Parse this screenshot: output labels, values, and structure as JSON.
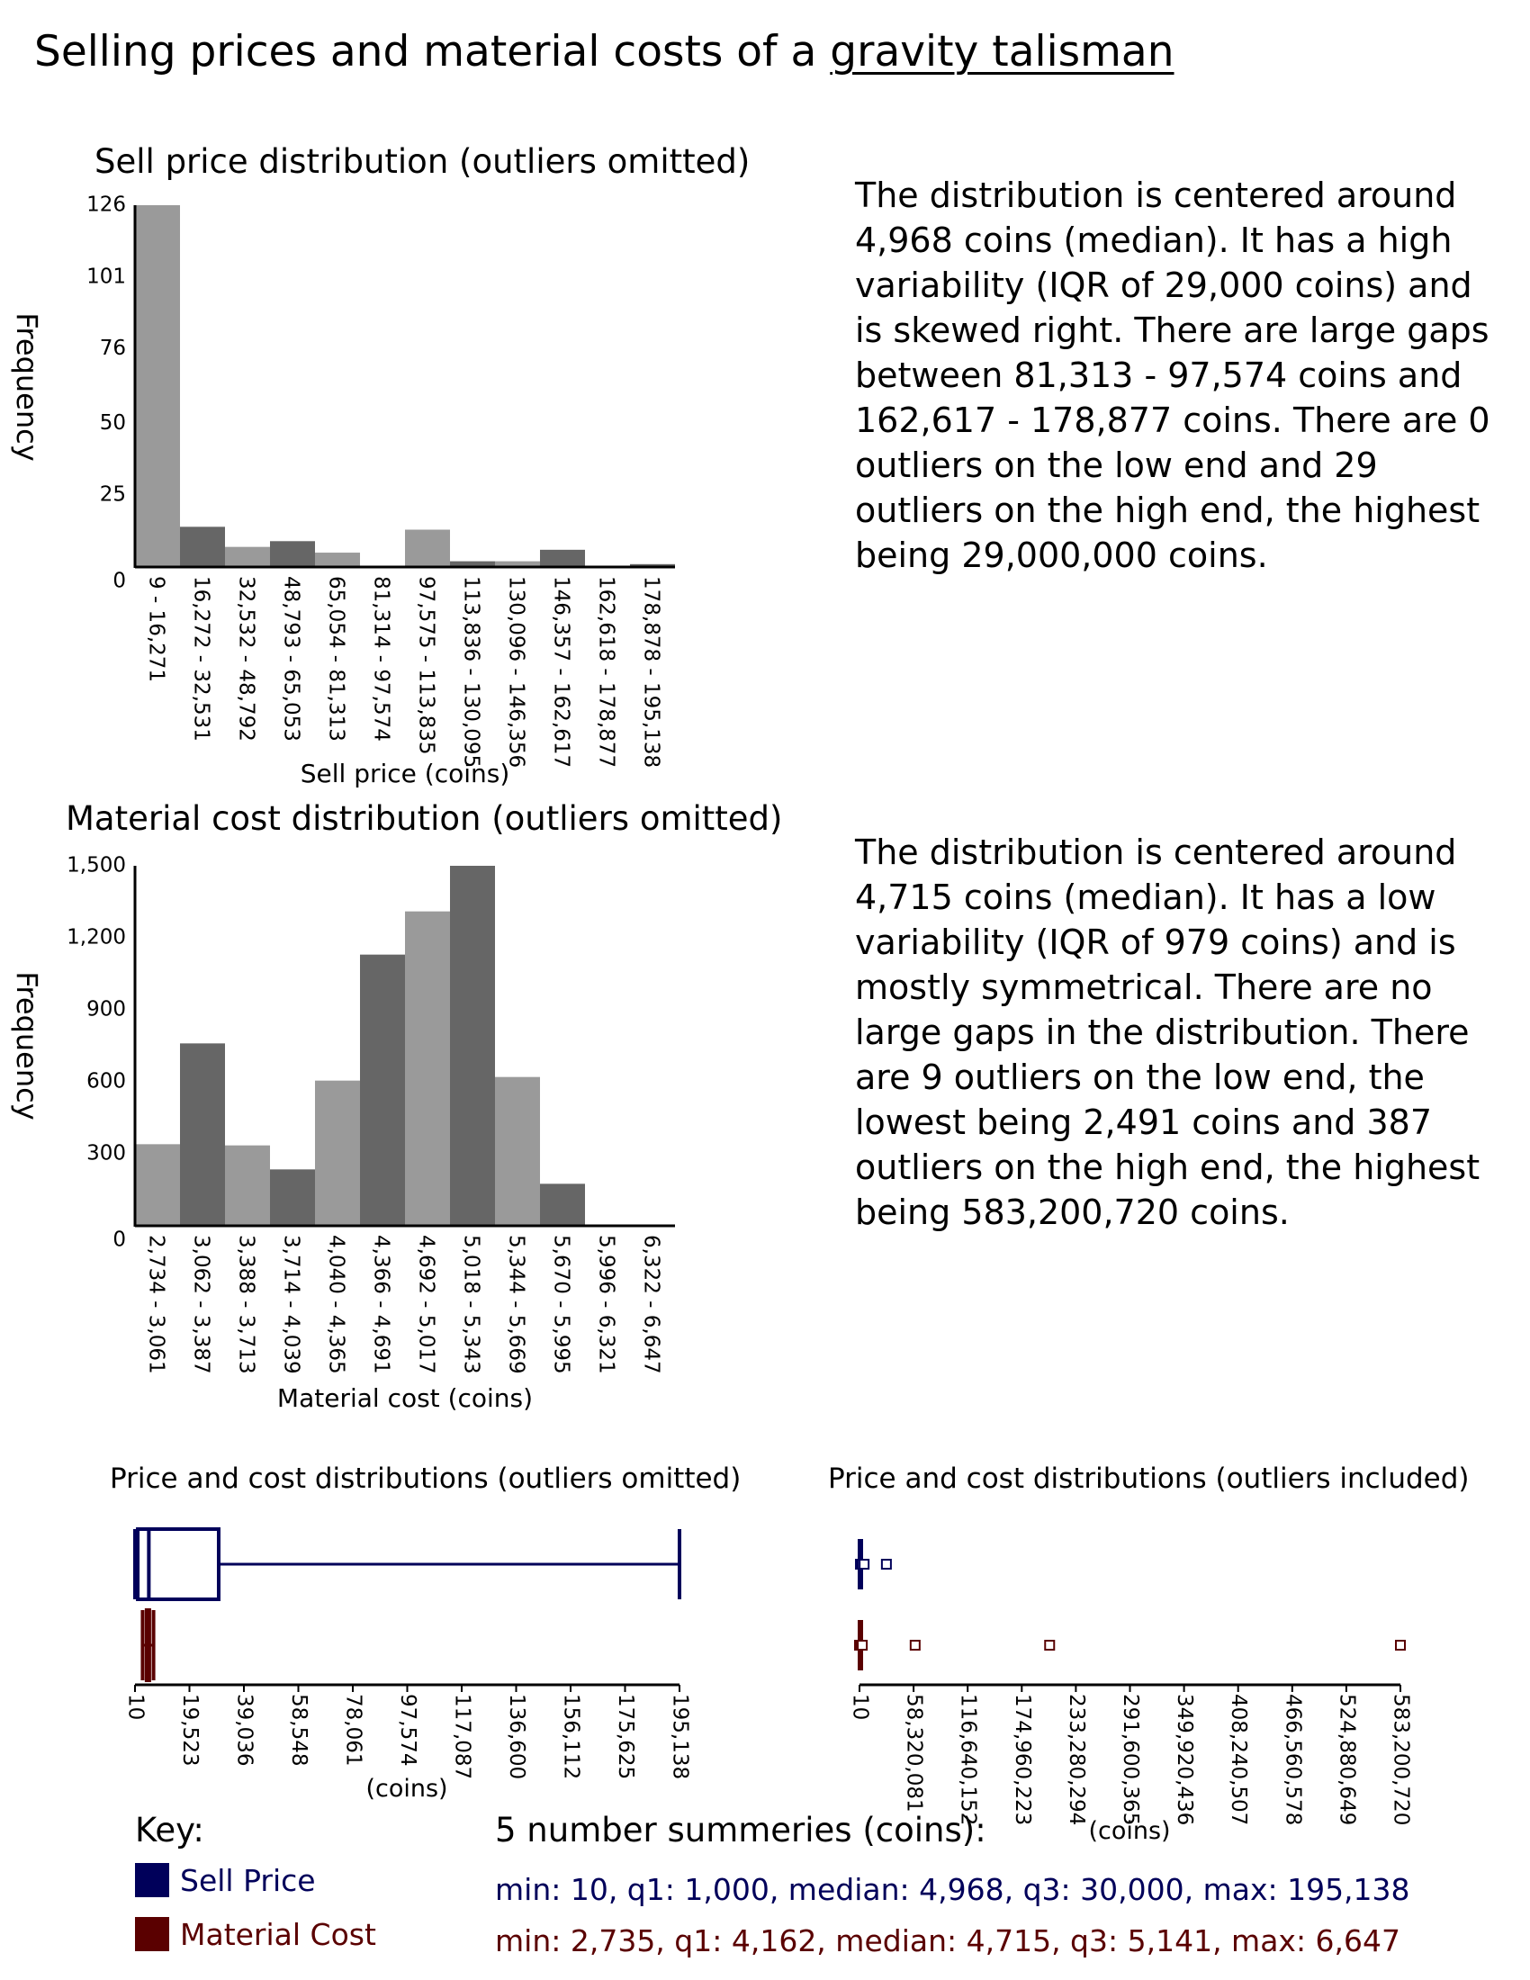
{
  "page": {
    "title_prefix": "Selling prices and material costs of a ",
    "title_item": "gravity talisman"
  },
  "colors": {
    "sell": "#00005a",
    "material": "#5a0000",
    "bar_light": "#9a9a9a",
    "bar_dark": "#666666"
  },
  "sell_hist": {
    "title": "Sell price distribution (outliers omitted)",
    "description": "The distribution is centered around 4,968 coins (median). It has a high variability (IQR of 29,000 coins) and is skewed right. There are large gaps between 81,313 - 97,574 coins and 162,617 - 178,877 coins. There are 0 outliers on the low end and 29 outliers on the high end, the highest being 29,000,000 coins."
  },
  "material_hist": {
    "title": "Material cost distribution (outliers omitted)",
    "description": "The distribution is centered around 4,715 coins (median). It has a low variability (IQR of 979 coins) and is mostly symmetrical. There are no large gaps in the distribution. There are 9 outliers on the low end, the lowest being 2,491 coins and 387 outliers on the high end, the highest being 583,200,720 coins."
  },
  "box_omitted": {
    "title": "Price and cost distributions (outliers omitted)"
  },
  "box_included": {
    "title": "Price and cost distributions (outliers included)"
  },
  "key": {
    "title": "Key:",
    "sell_label": "Sell Price",
    "material_label": "Material Cost"
  },
  "summary": {
    "title": "5 number summeries (coins):",
    "sell_line": "min: 10, q1: 1,000, median: 4,968, q3: 30,000, max: 195,138",
    "material_line": "min: 2,735, q1: 4,162, median: 4,715, q3: 5,141, max: 6,647"
  },
  "chart_data": [
    {
      "type": "bar",
      "title": "Sell price distribution (outliers omitted)",
      "xlabel": "Sell price (coins)",
      "ylabel": "Frequency",
      "yticks": [
        "0",
        "25",
        "50",
        "76",
        "101",
        "126"
      ],
      "ylim": [
        0,
        126
      ],
      "categories": [
        "9 - 16,271",
        "16,272 - 32,531",
        "32,532 - 48,792",
        "48,793 - 65,053",
        "65,054 - 81,313",
        "81,314 - 97,574",
        "97,575 - 113,835",
        "113,836 - 130,095",
        "130,096 - 146,356",
        "146,357 - 162,617",
        "162,618 - 178,877",
        "178,878 - 195,138"
      ],
      "values": [
        126,
        14,
        7,
        9,
        5,
        0,
        13,
        2,
        2,
        6,
        0,
        1
      ]
    },
    {
      "type": "bar",
      "title": "Material cost distribution (outliers omitted)",
      "xlabel": "Material cost (coins)",
      "ylabel": "Frequency",
      "yticks": [
        "0",
        "300",
        "600",
        "900",
        "1,200",
        "1,500"
      ],
      "ylim": [
        0,
        1500
      ],
      "categories": [
        "2,734 - 3,061",
        "3,062 - 3,387",
        "3,388 - 3,713",
        "3,714 - 4,039",
        "4,040 - 4,365",
        "4,366 - 4,691",
        "4,692 - 5,017",
        "5,018 - 5,343",
        "5,344 - 5,669",
        "5,670 - 5,995",
        "5,996 - 6,321",
        "6,322 - 6,647"
      ],
      "values": [
        340,
        760,
        335,
        235,
        605,
        1130,
        1310,
        1500,
        620,
        175,
        3,
        5
      ]
    },
    {
      "type": "box",
      "title": "Price and cost distributions (outliers omitted)",
      "xlabel": "(coins)",
      "xlim": [
        10,
        195138
      ],
      "xticks": [
        "10",
        "19,523",
        "39,036",
        "58,548",
        "78,061",
        "97,574",
        "117,087",
        "136,600",
        "156,112",
        "175,625",
        "195,138"
      ],
      "series": [
        {
          "name": "Sell Price",
          "min": 10,
          "q1": 1000,
          "median": 4968,
          "q3": 30000,
          "max": 195138
        },
        {
          "name": "Material Cost",
          "min": 2735,
          "q1": 4162,
          "median": 4715,
          "q3": 5141,
          "max": 6647
        }
      ]
    },
    {
      "type": "box",
      "title": "Price and cost distributions (outliers included)",
      "xlabel": "(coins)",
      "xlim": [
        10,
        583200720
      ],
      "xticks": [
        "10",
        "58,320,081",
        "116,640,152",
        "174,960,223",
        "233,280,294",
        "291,600,365",
        "349,920,436",
        "408,240,507",
        "466,560,578",
        "524,880,649",
        "583,200,720"
      ],
      "series": [
        {
          "name": "Sell Price",
          "min": 10,
          "q1": 1000,
          "median": 4968,
          "q3": 30000,
          "max": 195138,
          "outliers": [
            1000000,
            2000000,
            3000000,
            5000000,
            29000000
          ]
        },
        {
          "name": "Material Cost",
          "min": 2735,
          "q1": 4162,
          "median": 4715,
          "q3": 5141,
          "max": 6647,
          "outliers": [
            2491,
            1000000,
            2000000,
            3000000,
            60000000,
            205000000,
            583200720
          ]
        }
      ]
    }
  ]
}
